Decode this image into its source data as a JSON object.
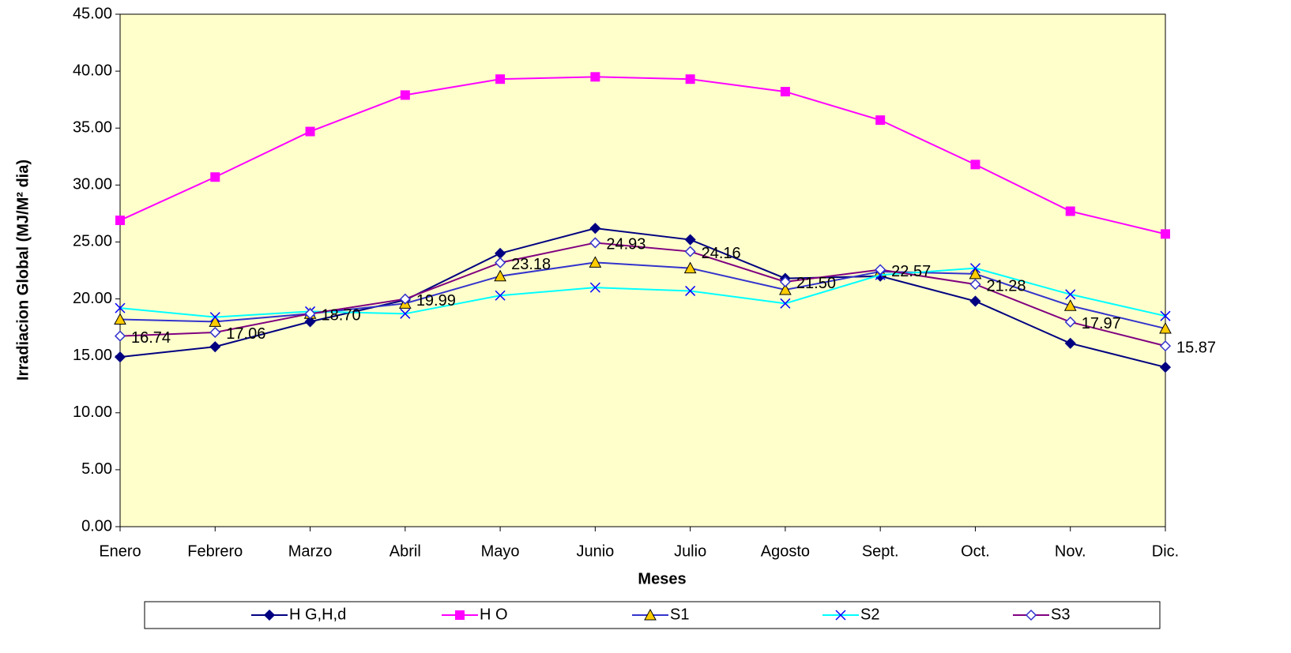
{
  "chart_data": {
    "type": "line",
    "x_label": "Meses",
    "y_label": "Irradiacion Global (MJ/M² dia)",
    "categories": [
      "Enero",
      "Febrero",
      "Marzo",
      "Abril",
      "Mayo",
      "Junio",
      "Julio",
      "Agosto",
      "Sept.",
      "Oct.",
      "Nov.",
      "Dic."
    ],
    "ylim": [
      0,
      45
    ],
    "yticks": [
      {
        "value": 0,
        "label": "0.00"
      },
      {
        "value": 5,
        "label": "5.00"
      },
      {
        "value": 10,
        "label": "10.00"
      },
      {
        "value": 15,
        "label": "15.00"
      },
      {
        "value": 20,
        "label": "20.00"
      },
      {
        "value": 25,
        "label": "25.00"
      },
      {
        "value": 30,
        "label": "30.00"
      },
      {
        "value": 35,
        "label": "35.00"
      },
      {
        "value": 40,
        "label": "40.00"
      },
      {
        "value": 45,
        "label": "45.00"
      }
    ],
    "grid": false,
    "background": "#ffffcc",
    "legend": "bottom",
    "series": [
      {
        "name": "H G,H,d",
        "color": "#000080",
        "marker": "diamond",
        "marker_color": "#000080",
        "values": [
          14.9,
          15.8,
          18.0,
          19.9,
          24.0,
          26.2,
          25.2,
          21.8,
          22.0,
          19.8,
          16.1,
          14.0
        ]
      },
      {
        "name": "H O",
        "color": "#ff00ff",
        "marker": "square",
        "marker_color": "#ff00ff",
        "values": [
          26.9,
          30.7,
          34.7,
          37.9,
          39.3,
          39.5,
          39.3,
          38.2,
          35.7,
          31.8,
          27.7,
          25.7
        ]
      },
      {
        "name": "S1",
        "color": "#3333cc",
        "marker": "triangle",
        "marker_color": "#ffcc00",
        "values": [
          18.2,
          18.0,
          18.7,
          19.6,
          22.0,
          23.2,
          22.7,
          20.8,
          22.4,
          22.2,
          19.4,
          17.4
        ]
      },
      {
        "name": "S2",
        "color": "#00ffff",
        "marker": "cross",
        "marker_color": "#0000ff",
        "values": [
          19.2,
          18.4,
          18.9,
          18.7,
          20.3,
          21.0,
          20.7,
          19.6,
          22.1,
          22.7,
          20.4,
          18.5
        ]
      },
      {
        "name": "S3",
        "color": "#800080",
        "marker": "open-diamond",
        "marker_color": "#3333cc",
        "values": [
          16.74,
          17.06,
          18.7,
          19.99,
          23.18,
          24.93,
          24.16,
          21.5,
          22.57,
          21.28,
          17.97,
          15.87
        ],
        "value_labels": [
          "16.74",
          "17.06",
          "18.70",
          "19.99",
          "23.18",
          "24.93",
          "24.16",
          "21.50",
          "22.57",
          "21.28",
          "17.97",
          "15.87"
        ]
      }
    ]
  }
}
